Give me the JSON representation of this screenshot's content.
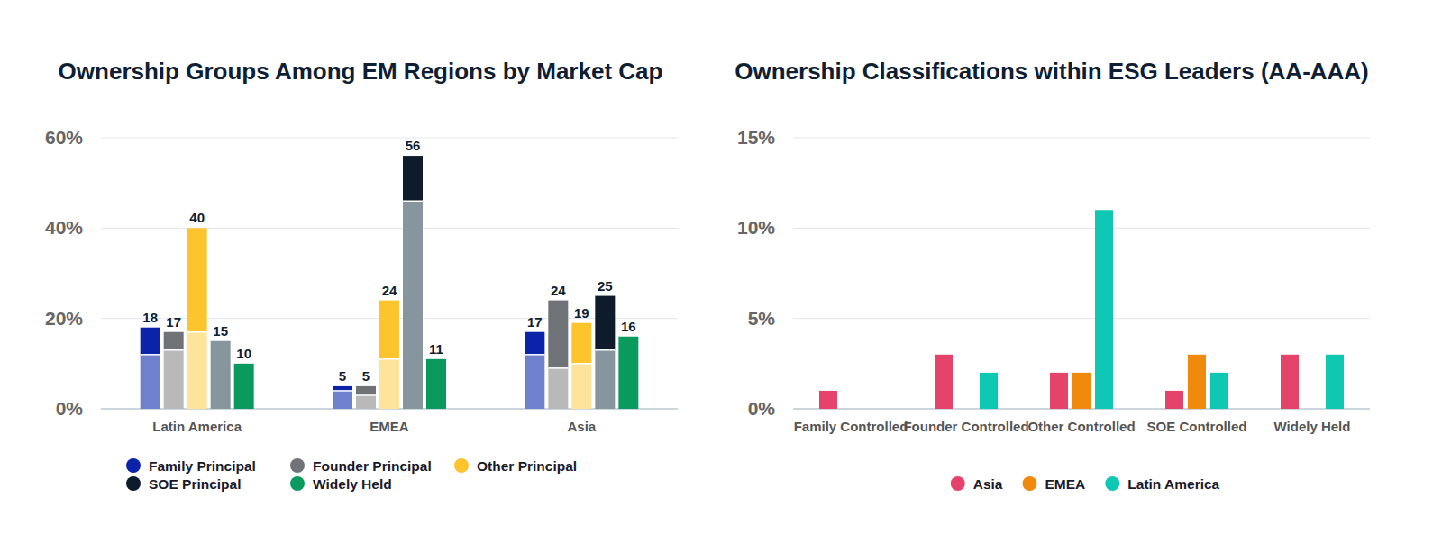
{
  "chart_data": [
    {
      "type": "bar",
      "title": "Ownership Groups Among EM Regions by Market Cap",
      "categories": [
        "Latin America",
        "EMEA",
        "Asia"
      ],
      "stacked": true,
      "data_labels": true,
      "grid": true,
      "legend": "bottom",
      "ylim": [
        0,
        60
      ],
      "yticks": [
        {
          "value": 0,
          "label": "0%"
        },
        {
          "value": 20,
          "label": "20%"
        },
        {
          "value": 40,
          "label": "40%"
        },
        {
          "value": 60,
          "label": "60%"
        }
      ],
      "series": [
        {
          "name": "Family Principal",
          "color": "#0b23a9",
          "base": [
            12,
            4,
            12
          ],
          "values": [
            6,
            1,
            5
          ],
          "totals": [
            18,
            5,
            17
          ]
        },
        {
          "name": "Founder Principal",
          "color": "#6f7276",
          "base": [
            13,
            3,
            9
          ],
          "values": [
            4,
            2,
            15
          ],
          "totals": [
            17,
            5,
            24
          ]
        },
        {
          "name": "Other Principal",
          "color": "#fdc42d",
          "base": [
            17,
            11,
            10
          ],
          "values": [
            23,
            13,
            9
          ],
          "totals": [
            40,
            24,
            19
          ]
        },
        {
          "name": "SOE Principal",
          "color": "#0d1b2b",
          "base": [
            15,
            46,
            13
          ],
          "values": [
            0,
            10,
            12
          ],
          "totals": [
            15,
            56,
            25
          ]
        },
        {
          "name": "Widely Held",
          "color": "#0a9a5e",
          "base": [
            0,
            0,
            0
          ],
          "values": [
            10,
            11,
            16
          ],
          "totals": [
            10,
            11,
            16
          ]
        }
      ]
    },
    {
      "type": "bar",
      "title": "Ownership Classifications within ESG Leaders (AA-AAA)",
      "categories": [
        "Family Controlled",
        "Founder Controlled",
        "Other Controlled",
        "SOE Controlled",
        "Widely Held"
      ],
      "grid": true,
      "legend": "bottom",
      "ylim": [
        0,
        15
      ],
      "yticks": [
        {
          "value": 0,
          "label": "0%"
        },
        {
          "value": 5,
          "label": "5%"
        },
        {
          "value": 10,
          "label": "10%"
        },
        {
          "value": 15,
          "label": "15%"
        }
      ],
      "series": [
        {
          "name": "Asia",
          "color": "#e5436a",
          "values": [
            1,
            3,
            2,
            1,
            3
          ]
        },
        {
          "name": "EMEA",
          "color": "#f08a0c",
          "values": [
            null,
            null,
            2,
            3,
            null
          ]
        },
        {
          "name": "Latin America",
          "color": "#0fc8b4",
          "values": [
            null,
            2,
            11,
            2,
            3
          ]
        }
      ]
    }
  ]
}
